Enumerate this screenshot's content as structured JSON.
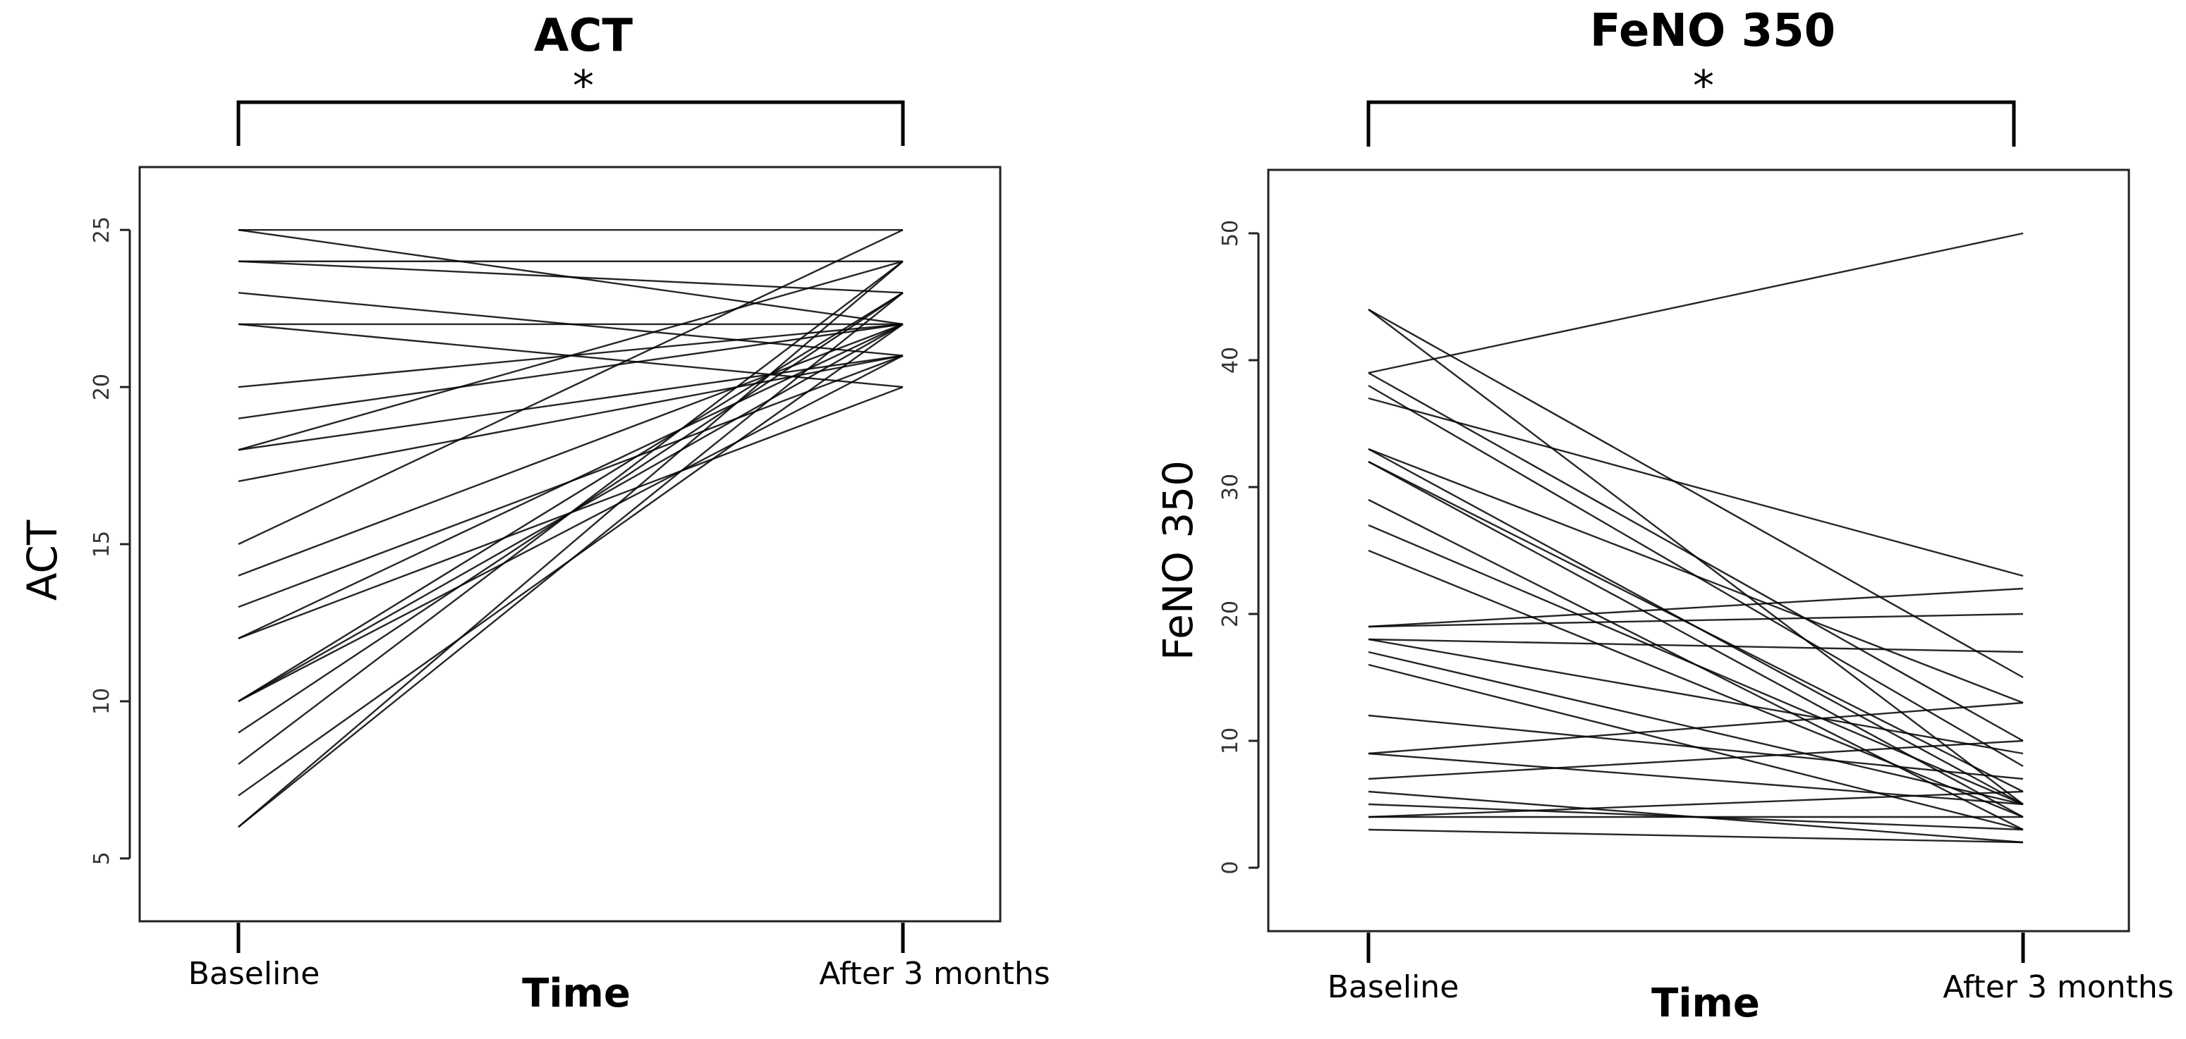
{
  "chart_data": [
    {
      "type": "line",
      "title": "ACT",
      "annotation": "*",
      "xlabel": "Time",
      "ylabel": "ACT",
      "categories": [
        "Baseline",
        "After 3 months"
      ],
      "ylim": [
        3,
        27
      ],
      "yticks": [
        5,
        10,
        15,
        20,
        25
      ],
      "grid": false,
      "series": [
        {
          "values": [
            25,
            25
          ]
        },
        {
          "values": [
            25,
            22
          ]
        },
        {
          "values": [
            24,
            24
          ]
        },
        {
          "values": [
            24,
            23
          ]
        },
        {
          "values": [
            23,
            21
          ]
        },
        {
          "values": [
            22,
            22
          ]
        },
        {
          "values": [
            22,
            20
          ]
        },
        {
          "values": [
            20,
            22
          ]
        },
        {
          "values": [
            19,
            22
          ]
        },
        {
          "values": [
            18,
            21
          ]
        },
        {
          "values": [
            18,
            24
          ]
        },
        {
          "values": [
            17,
            21
          ]
        },
        {
          "values": [
            15,
            25
          ]
        },
        {
          "values": [
            14,
            22
          ]
        },
        {
          "values": [
            13,
            21
          ]
        },
        {
          "values": [
            12,
            22
          ]
        },
        {
          "values": [
            12,
            20
          ]
        },
        {
          "values": [
            10,
            23
          ]
        },
        {
          "values": [
            10,
            22
          ]
        },
        {
          "values": [
            10,
            21
          ]
        },
        {
          "values": [
            9,
            23
          ]
        },
        {
          "values": [
            8,
            24
          ]
        },
        {
          "values": [
            7,
            22
          ]
        },
        {
          "values": [
            6,
            23
          ]
        },
        {
          "values": [
            6,
            24
          ]
        }
      ]
    },
    {
      "type": "line",
      "title": "FeNO 350",
      "annotation": "*",
      "xlabel": "Time",
      "ylabel": "FeNO 350",
      "categories": [
        "Baseline",
        "After 3 months"
      ],
      "ylim": [
        -5,
        55
      ],
      "yticks": [
        0,
        10,
        20,
        30,
        40,
        50
      ],
      "grid": false,
      "series": [
        {
          "values": [
            44,
            15
          ]
        },
        {
          "values": [
            44,
            5
          ]
        },
        {
          "values": [
            39,
            50
          ]
        },
        {
          "values": [
            39,
            10
          ]
        },
        {
          "values": [
            38,
            8
          ]
        },
        {
          "values": [
            37,
            23
          ]
        },
        {
          "values": [
            33,
            13
          ]
        },
        {
          "values": [
            33,
            5
          ]
        },
        {
          "values": [
            32,
            4
          ]
        },
        {
          "values": [
            32,
            6
          ]
        },
        {
          "values": [
            29,
            3
          ]
        },
        {
          "values": [
            27,
            5
          ]
        },
        {
          "values": [
            25,
            4
          ]
        },
        {
          "values": [
            19,
            22
          ]
        },
        {
          "values": [
            19,
            20
          ]
        },
        {
          "values": [
            18,
            17
          ]
        },
        {
          "values": [
            18,
            9
          ]
        },
        {
          "values": [
            17,
            5
          ]
        },
        {
          "values": [
            16,
            3
          ]
        },
        {
          "values": [
            12,
            7
          ]
        },
        {
          "values": [
            9,
            13
          ]
        },
        {
          "values": [
            9,
            5
          ]
        },
        {
          "values": [
            7,
            10
          ]
        },
        {
          "values": [
            6,
            2
          ]
        },
        {
          "values": [
            5,
            3
          ]
        },
        {
          "values": [
            4,
            4
          ]
        },
        {
          "values": [
            4,
            6
          ]
        },
        {
          "values": [
            3,
            2
          ]
        }
      ]
    }
  ]
}
